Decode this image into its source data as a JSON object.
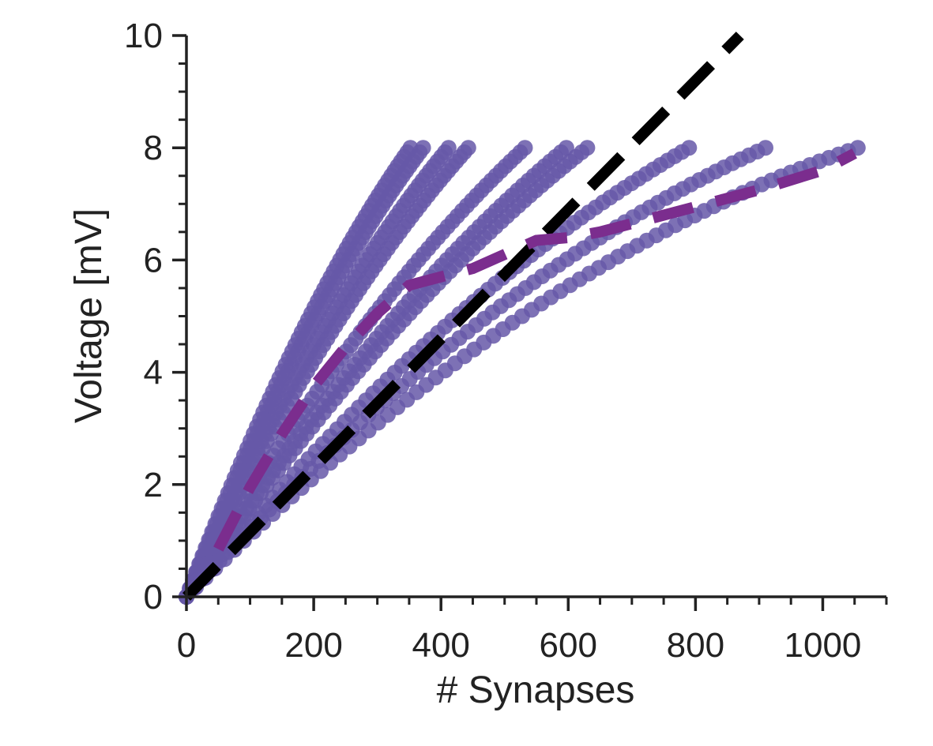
{
  "chart_data": {
    "type": "scatter",
    "title": "",
    "xlabel": "# Synapses",
    "ylabel": "Voltage [mV]",
    "xlim": [
      0,
      1100
    ],
    "ylim": [
      0,
      10
    ],
    "xticks": [
      0,
      200,
      400,
      600,
      800,
      1000
    ],
    "xtick_labels": [
      "0",
      "200",
      "400",
      "600",
      "800",
      "1000"
    ],
    "yticks": [
      0,
      2,
      4,
      6,
      8,
      10
    ],
    "ytick_labels": [
      "0",
      "2",
      "4",
      "6",
      "8",
      "10"
    ],
    "x_minor_step": 50,
    "y_minor_step": 0.5,
    "grid": false,
    "legend": "none",
    "colors": {
      "scatter": "#6658a8",
      "mean_line": "#7b2d8e",
      "reference_line": "#000000",
      "axis": "#222222"
    },
    "series": [
      {
        "type": "scatter",
        "x_max": 352,
        "y_end": 8,
        "curvature": 0.3,
        "points": 70
      },
      {
        "type": "scatter",
        "x_max": 372,
        "y_end": 8,
        "curvature": 0.3,
        "points": 70
      },
      {
        "type": "scatter",
        "x_max": 412,
        "y_end": 8,
        "curvature": 0.3,
        "points": 70
      },
      {
        "type": "scatter",
        "x_max": 443,
        "y_end": 8,
        "curvature": 0.3,
        "points": 70
      },
      {
        "type": "scatter",
        "x_max": 532,
        "y_end": 8,
        "curvature": 0.3,
        "points": 70
      },
      {
        "type": "scatter",
        "x_max": 597,
        "y_end": 8,
        "curvature": 0.3,
        "points": 70
      },
      {
        "type": "scatter",
        "x_max": 630,
        "y_end": 8,
        "curvature": 0.3,
        "points": 70
      },
      {
        "type": "scatter",
        "x_max": 790,
        "y_end": 8,
        "curvature": 0.35,
        "points": 70
      },
      {
        "type": "scatter",
        "x_max": 910,
        "y_end": 8,
        "curvature": 0.42,
        "points": 70
      },
      {
        "type": "scatter",
        "x_max": 1055,
        "y_end": 8,
        "curvature": 0.5,
        "points": 70
      }
    ],
    "mean_line": {
      "style": "dashed",
      "x": [
        50,
        100,
        150,
        200,
        250,
        300,
        350,
        400,
        450,
        500,
        550,
        600,
        650,
        700,
        800,
        900,
        1000,
        1050
      ],
      "y": [
        0.85,
        1.95,
        2.9,
        3.75,
        4.45,
        5.05,
        5.55,
        5.7,
        5.85,
        6.1,
        6.35,
        6.4,
        6.5,
        6.65,
        6.95,
        7.25,
        7.6,
        7.9
      ]
    },
    "reference_line": {
      "style": "dashed",
      "x": [
        0,
        870
      ],
      "y": [
        0,
        10
      ]
    }
  }
}
